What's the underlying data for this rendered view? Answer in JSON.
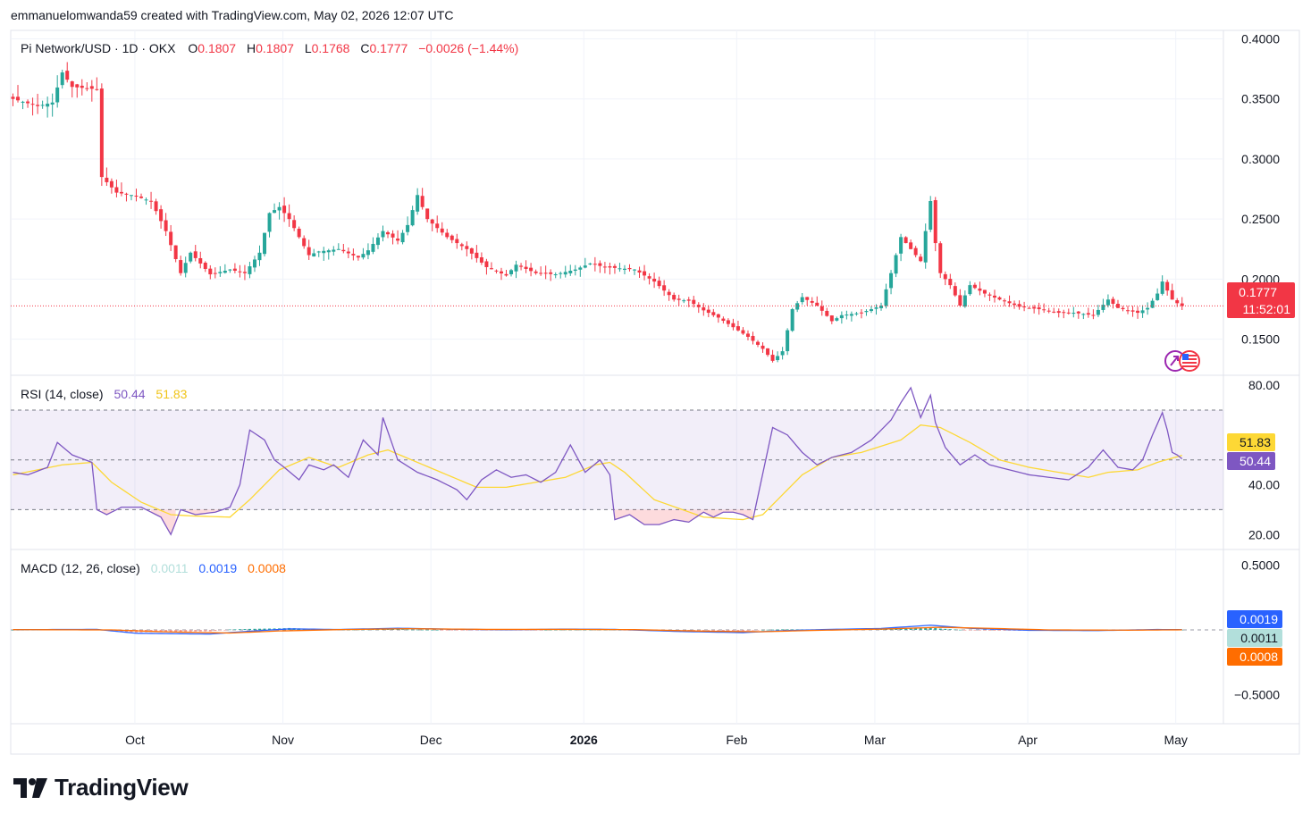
{
  "caption": "emmanuelomwanda59 created with TradingView.com, May 02, 2026 12:07 UTC",
  "brand": {
    "logo_icon": "tradingview-logo-icon",
    "name": "TradingView"
  },
  "colors": {
    "up": "#26a69a",
    "down": "#f23645",
    "rsi": "#7e57c2",
    "rsi_ma": "#fdd835",
    "macd": "#2962ff",
    "signal": "#ff6d00",
    "hist": "#b2dfdb",
    "price_tag": "#f23645"
  },
  "legend": {
    "symbol": "Pi Network/USD · 1D · OKX",
    "o_label": "O",
    "o_value": "0.1807",
    "h_label": "H",
    "h_value": "0.1807",
    "l_label": "L",
    "l_value": "0.1768",
    "c_label": "C",
    "c_value": "0.1777",
    "change": "−0.0026 (−1.44%)"
  },
  "price_tag": {
    "value": "0.1777",
    "countdown": "11:52:01"
  },
  "rsi_legend": {
    "label": "RSI (14, close)",
    "rsi": "50.44",
    "ma": "51.83"
  },
  "macd_legend": {
    "label": "MACD (12, 26, close)",
    "hist": "0.0011",
    "macd": "0.0019",
    "signal": "0.0008"
  },
  "macd_tags": {
    "macd": "0.0019",
    "hist": "0.0011",
    "signal": "0.0008"
  },
  "rsi_tags": {
    "ma": "51.83",
    "rsi": "50.44"
  },
  "chart_data": {
    "type": "candlestick",
    "price_axis": {
      "ticks": [
        "0.4000",
        "0.3500",
        "0.3000",
        "0.2500",
        "0.2000",
        "0.1500"
      ],
      "range": [
        0.12,
        0.41
      ]
    },
    "rsi_axis": {
      "ticks": [
        "80.00",
        "40.00",
        "20.00"
      ],
      "range": [
        14,
        84
      ],
      "bands": [
        70,
        30
      ],
      "middle": 50
    },
    "macd_axis": {
      "ticks": [
        "0.5000",
        "−0.5000"
      ],
      "range": [
        -0.62,
        0.62
      ]
    },
    "x_labels": [
      {
        "label": "Oct",
        "day": 23
      },
      {
        "label": "Nov",
        "day": 53
      },
      {
        "label": "Dec",
        "day": 83
      },
      {
        "label": "2026",
        "day": 114,
        "bold": true
      },
      {
        "label": "Feb",
        "day": 145
      },
      {
        "label": "Mar",
        "day": 173
      },
      {
        "label": "Apr",
        "day": 204
      },
      {
        "label": "May",
        "day": 234
      }
    ],
    "current_price": 0.1777,
    "ohlc_keypoints": [
      [
        0,
        0.35
      ],
      [
        5,
        0.344
      ],
      [
        8,
        0.347
      ],
      [
        10,
        0.372
      ],
      [
        12,
        0.36
      ],
      [
        17,
        0.358
      ],
      [
        18,
        0.285
      ],
      [
        21,
        0.272
      ],
      [
        24,
        0.27
      ],
      [
        28,
        0.265
      ],
      [
        31,
        0.24
      ],
      [
        34,
        0.205
      ],
      [
        36,
        0.222
      ],
      [
        40,
        0.204
      ],
      [
        44,
        0.208
      ],
      [
        47,
        0.205
      ],
      [
        50,
        0.222
      ],
      [
        52,
        0.255
      ],
      [
        54,
        0.26
      ],
      [
        56,
        0.25
      ],
      [
        58,
        0.235
      ],
      [
        60,
        0.22
      ],
      [
        62,
        0.223
      ],
      [
        66,
        0.225
      ],
      [
        70,
        0.218
      ],
      [
        72,
        0.224
      ],
      [
        75,
        0.24
      ],
      [
        78,
        0.232
      ],
      [
        80,
        0.245
      ],
      [
        82,
        0.27
      ],
      [
        84,
        0.25
      ],
      [
        88,
        0.235
      ],
      [
        92,
        0.225
      ],
      [
        96,
        0.21
      ],
      [
        100,
        0.203
      ],
      [
        102,
        0.212
      ],
      [
        106,
        0.205
      ],
      [
        110,
        0.204
      ],
      [
        114,
        0.208
      ],
      [
        117,
        0.213
      ],
      [
        120,
        0.21
      ],
      [
        126,
        0.208
      ],
      [
        130,
        0.198
      ],
      [
        134,
        0.183
      ],
      [
        137,
        0.182
      ],
      [
        140,
        0.174
      ],
      [
        143,
        0.168
      ],
      [
        146,
        0.16
      ],
      [
        149,
        0.152
      ],
      [
        152,
        0.142
      ],
      [
        154,
        0.132
      ],
      [
        156,
        0.14
      ],
      [
        158,
        0.175
      ],
      [
        160,
        0.185
      ],
      [
        163,
        0.178
      ],
      [
        166,
        0.165
      ],
      [
        168,
        0.17
      ],
      [
        172,
        0.172
      ],
      [
        176,
        0.178
      ],
      [
        178,
        0.205
      ],
      [
        180,
        0.235
      ],
      [
        182,
        0.225
      ],
      [
        184,
        0.215
      ],
      [
        186,
        0.265
      ],
      [
        187,
        0.23
      ],
      [
        188,
        0.205
      ],
      [
        190,
        0.195
      ],
      [
        192,
        0.178
      ],
      [
        194,
        0.195
      ],
      [
        197,
        0.188
      ],
      [
        200,
        0.183
      ],
      [
        204,
        0.177
      ],
      [
        208,
        0.175
      ],
      [
        212,
        0.172
      ],
      [
        215,
        0.172
      ],
      [
        219,
        0.17
      ],
      [
        222,
        0.183
      ],
      [
        224,
        0.176
      ],
      [
        228,
        0.172
      ],
      [
        230,
        0.176
      ],
      [
        232,
        0.188
      ],
      [
        233,
        0.198
      ],
      [
        235,
        0.183
      ],
      [
        236,
        0.18
      ],
      [
        237,
        0.1777
      ]
    ],
    "rsi_keypoints": [
      [
        0,
        45
      ],
      [
        3,
        44
      ],
      [
        7,
        47
      ],
      [
        9,
        57
      ],
      [
        12,
        52
      ],
      [
        16,
        49
      ],
      [
        17,
        30
      ],
      [
        19,
        28
      ],
      [
        22,
        31
      ],
      [
        26,
        31
      ],
      [
        30,
        27
      ],
      [
        32,
        20
      ],
      [
        34,
        30
      ],
      [
        37,
        28
      ],
      [
        41,
        29
      ],
      [
        44,
        31
      ],
      [
        46,
        40
      ],
      [
        48,
        62
      ],
      [
        51,
        58
      ],
      [
        53,
        50
      ],
      [
        55,
        47
      ],
      [
        58,
        42
      ],
      [
        60,
        48
      ],
      [
        63,
        46
      ],
      [
        65,
        48
      ],
      [
        68,
        43
      ],
      [
        71,
        58
      ],
      [
        74,
        52
      ],
      [
        75,
        67
      ],
      [
        78,
        50
      ],
      [
        82,
        45
      ],
      [
        86,
        42
      ],
      [
        90,
        38
      ],
      [
        92,
        34
      ],
      [
        95,
        42
      ],
      [
        98,
        46
      ],
      [
        101,
        43
      ],
      [
        104,
        44
      ],
      [
        107,
        41
      ],
      [
        110,
        45
      ],
      [
        113,
        56
      ],
      [
        116,
        45
      ],
      [
        119,
        50
      ],
      [
        121,
        44
      ],
      [
        122,
        26
      ],
      [
        125,
        28
      ],
      [
        128,
        24
      ],
      [
        131,
        24
      ],
      [
        134,
        26
      ],
      [
        137,
        25
      ],
      [
        140,
        29
      ],
      [
        142,
        27
      ],
      [
        144,
        29
      ],
      [
        146,
        29
      ],
      [
        148,
        28
      ],
      [
        150,
        26
      ],
      [
        154,
        63
      ],
      [
        157,
        60
      ],
      [
        160,
        53
      ],
      [
        163,
        48
      ],
      [
        166,
        51
      ],
      [
        170,
        53
      ],
      [
        174,
        58
      ],
      [
        178,
        66
      ],
      [
        180,
        73
      ],
      [
        182,
        79
      ],
      [
        184,
        67
      ],
      [
        186,
        76
      ],
      [
        187,
        65
      ],
      [
        189,
        55
      ],
      [
        192,
        48
      ],
      [
        195,
        52
      ],
      [
        198,
        48
      ],
      [
        202,
        46
      ],
      [
        206,
        44
      ],
      [
        210,
        43
      ],
      [
        214,
        42
      ],
      [
        218,
        47
      ],
      [
        221,
        54
      ],
      [
        224,
        47
      ],
      [
        227,
        46
      ],
      [
        229,
        50
      ],
      [
        231,
        60
      ],
      [
        233,
        69
      ],
      [
        234,
        62
      ],
      [
        235,
        53
      ],
      [
        236,
        52
      ],
      [
        237,
        50.44
      ]
    ],
    "rsi_ma_keypoints": [
      [
        0,
        44
      ],
      [
        10,
        48
      ],
      [
        16,
        49
      ],
      [
        20,
        41
      ],
      [
        26,
        33
      ],
      [
        32,
        28
      ],
      [
        36,
        27.5
      ],
      [
        44,
        27
      ],
      [
        48,
        34
      ],
      [
        54,
        46
      ],
      [
        60,
        51
      ],
      [
        66,
        47
      ],
      [
        72,
        52
      ],
      [
        76,
        54
      ],
      [
        82,
        49
      ],
      [
        88,
        44
      ],
      [
        94,
        39
      ],
      [
        100,
        39
      ],
      [
        106,
        41
      ],
      [
        112,
        43
      ],
      [
        118,
        48
      ],
      [
        121,
        49
      ],
      [
        124,
        45
      ],
      [
        130,
        34
      ],
      [
        140,
        27
      ],
      [
        148,
        26
      ],
      [
        152,
        28
      ],
      [
        156,
        36
      ],
      [
        160,
        44
      ],
      [
        166,
        51
      ],
      [
        172,
        53
      ],
      [
        180,
        58
      ],
      [
        184,
        64
      ],
      [
        188,
        63
      ],
      [
        194,
        57
      ],
      [
        200,
        50
      ],
      [
        206,
        47
      ],
      [
        212,
        45
      ],
      [
        218,
        43
      ],
      [
        222,
        45
      ],
      [
        228,
        46
      ],
      [
        232,
        49
      ],
      [
        237,
        51.83
      ]
    ],
    "macd_keypoints": [
      [
        0,
        0.002
      ],
      [
        17,
        0.004
      ],
      [
        25,
        -0.026
      ],
      [
        40,
        -0.032
      ],
      [
        48,
        -0.01
      ],
      [
        56,
        0.008
      ],
      [
        66,
        0.003
      ],
      [
        78,
        0.013
      ],
      [
        88,
        0.006
      ],
      [
        100,
        0.001
      ],
      [
        112,
        0.006
      ],
      [
        122,
        0.004
      ],
      [
        135,
        -0.012
      ],
      [
        148,
        -0.021
      ],
      [
        156,
        -0.006
      ],
      [
        166,
        0.004
      ],
      [
        176,
        0.011
      ],
      [
        186,
        0.036
      ],
      [
        194,
        0.012
      ],
      [
        206,
        -0.003
      ],
      [
        220,
        -0.005
      ],
      [
        232,
        0.003
      ],
      [
        237,
        0.0019
      ]
    ],
    "signal_keypoints": [
      [
        0,
        0.002
      ],
      [
        20,
        0.0
      ],
      [
        30,
        -0.014
      ],
      [
        44,
        -0.024
      ],
      [
        54,
        -0.008
      ],
      [
        66,
        0.002
      ],
      [
        80,
        0.009
      ],
      [
        96,
        0.004
      ],
      [
        112,
        0.004
      ],
      [
        126,
        0.002
      ],
      [
        140,
        -0.01
      ],
      [
        152,
        -0.014
      ],
      [
        162,
        -0.004
      ],
      [
        176,
        0.006
      ],
      [
        188,
        0.02
      ],
      [
        198,
        0.012
      ],
      [
        210,
        0.0
      ],
      [
        226,
        -0.002
      ],
      [
        237,
        0.0008
      ]
    ]
  }
}
